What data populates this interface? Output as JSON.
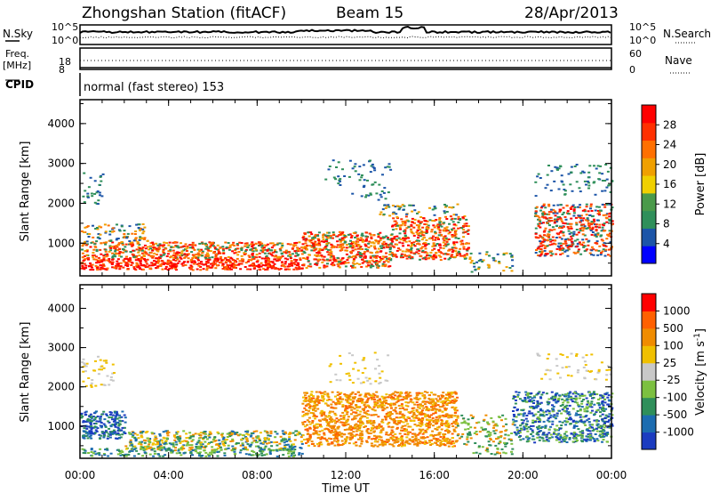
{
  "header": {
    "station_title": "Zhongshan Station (fitACF)",
    "beam": "Beam 15",
    "date": "28/Apr/2013"
  },
  "panels": {
    "nsky": {
      "left_label": "N.Sky",
      "left_ticks": [
        "10^5",
        "10^0"
      ],
      "right_label": "N.Search",
      "right_ticks": [
        "10^5",
        "10^0"
      ]
    },
    "freq": {
      "left_label": "Freq.",
      "left_unit": "[MHz]",
      "left_ticks": [
        "18",
        "8"
      ],
      "right_label": "Nave",
      "right_ticks": [
        "60",
        "0"
      ]
    },
    "cpid": {
      "label": "CPID",
      "text": "normal (fast stereo) 153"
    }
  },
  "colorbars": {
    "power": {
      "label": "Power [dB]",
      "ticks": [
        "28",
        "24",
        "20",
        "16",
        "12",
        "8",
        "4"
      ],
      "colors": [
        "#0000ff",
        "#1c55a8",
        "#2f8f5a",
        "#4a9a4a",
        "#f0d000",
        "#f0a000",
        "#ff7000",
        "#ff3000",
        "#ff0000"
      ]
    },
    "velocity": {
      "label": "Velocity [m s",
      "label_sup": "-1",
      "label_close": "]",
      "ticks": [
        "1000",
        "500",
        "100",
        "25",
        "-25",
        "-100",
        "-500",
        "-1000"
      ],
      "colors": [
        "#1c3cc0",
        "#1c6cb0",
        "#2f8f5a",
        "#7cc040",
        "#c8c8c8",
        "#f0c000",
        "#f08c00",
        "#ff6000",
        "#ff0000"
      ]
    }
  },
  "chart_data": [
    {
      "type": "heatmap",
      "title": "Power",
      "ylabel": "Slant Range [km]",
      "xlim": [
        "00:00",
        "24:00"
      ],
      "ylim": [
        180,
        4600
      ],
      "y_ticks": [
        "4000",
        "3000",
        "2000",
        "1000"
      ],
      "colorbar_label": "Power [dB]",
      "colorbar_ticks": [
        4,
        8,
        12,
        16,
        20,
        24,
        28
      ]
    },
    {
      "type": "heatmap",
      "title": "Velocity",
      "ylabel": "Slant Range [km]",
      "xlabel": "Time UT",
      "xlim": [
        "00:00",
        "24:00"
      ],
      "ylim": [
        180,
        4600
      ],
      "x_ticks": [
        "00:00",
        "04:00",
        "08:00",
        "12:00",
        "16:00",
        "20:00",
        "00:00"
      ],
      "y_ticks": [
        "4000",
        "3000",
        "2000",
        "1000"
      ],
      "colorbar_label": "Velocity [m s-1]",
      "colorbar_ticks": [
        1000,
        500,
        100,
        25,
        -25,
        -100,
        -500,
        -1000
      ]
    }
  ],
  "axis": {
    "x_ticks": [
      "00:00",
      "04:00",
      "08:00",
      "12:00",
      "16:00",
      "20:00",
      "00:00"
    ],
    "xlabel": "Time UT",
    "ylabel": "Slant Range [km]",
    "y_ticks": [
      "4000",
      "3000",
      "2000",
      "1000"
    ]
  }
}
